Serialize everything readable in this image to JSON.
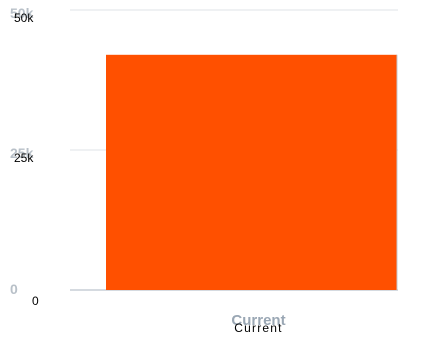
{
  "chart_data": {
    "type": "bar",
    "categories": [
      "Current"
    ],
    "values": [
      42000
    ],
    "ylim": [
      0,
      50000
    ],
    "yticks": [
      {
        "value": 0,
        "label": "0"
      },
      {
        "value": 25000,
        "label": "25k"
      },
      {
        "value": 50000,
        "label": "50k"
      }
    ],
    "grid": true,
    "title": "",
    "xlabel": "",
    "ylabel": ""
  },
  "colors": {
    "bar": "#ff5000",
    "bar_edge": "#c0c8d0",
    "grid": "#dfe3e7",
    "axis": "#c7ced6"
  }
}
